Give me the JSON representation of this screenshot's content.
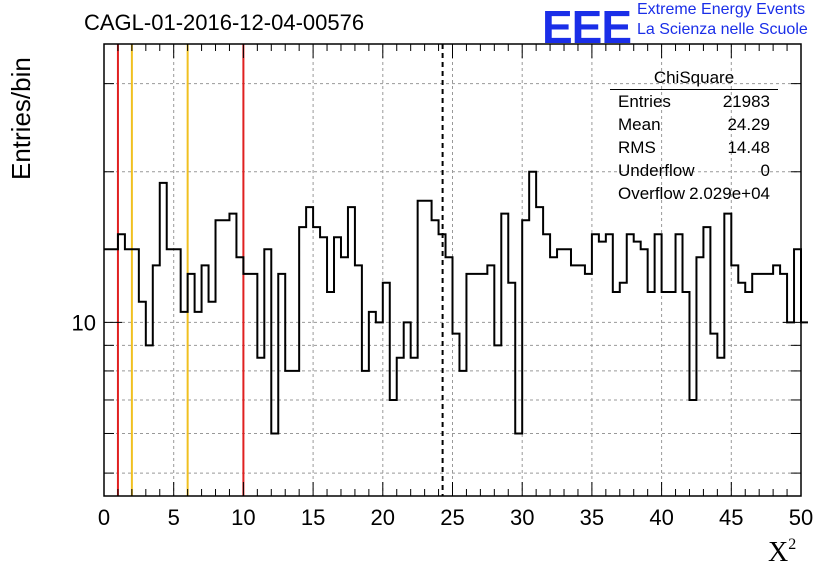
{
  "chart_data": {
    "type": "histogram",
    "title": "CAGL-01-2016-12-04-00576",
    "xlabel": "X",
    "xlabel_sup": "2",
    "ylabel": "Entries/bin",
    "xlim": [
      0,
      50
    ],
    "ylog": true,
    "ylim": [
      4.5,
      36
    ],
    "xticks": [
      0,
      5,
      10,
      15,
      20,
      25,
      30,
      35,
      40,
      45,
      50
    ],
    "xtick_labels": [
      "0",
      "5",
      "10",
      "15",
      "20",
      "25",
      "30",
      "35",
      "40",
      "45",
      "50"
    ],
    "yticks": [
      10
    ],
    "ytick_labels": [
      "10"
    ],
    "grid": true,
    "bin_width": 0.5,
    "bin_start": 0,
    "values": [
      14,
      14,
      15,
      14,
      14,
      11,
      9,
      13,
      19,
      14,
      14,
      10.5,
      12.5,
      10.5,
      13,
      11,
      16,
      16,
      16.5,
      13.5,
      12.5,
      12.5,
      8.5,
      14,
      6,
      12.5,
      8,
      8,
      15.5,
      17,
      15.5,
      14.8,
      11.5,
      14.8,
      13.5,
      17,
      13,
      8,
      10.5,
      10,
      12,
      7,
      8.5,
      10,
      8.5,
      17.5,
      17.5,
      16,
      15,
      13.5,
      9.5,
      8,
      12.5,
      12.5,
      12.5,
      13,
      9,
      16.5,
      12,
      6,
      16,
      20,
      17,
      15,
      13.5,
      14,
      14,
      13,
      13,
      12.5,
      15,
      14.5,
      15,
      11.5,
      12,
      15,
      14.5,
      14,
      11.5,
      15,
      11.5,
      11.5,
      15,
      11.5,
      7,
      13.5,
      15.5,
      9.5,
      8.5,
      16.5,
      13,
      12,
      11.5,
      12.5,
      12.5,
      12.5,
      13,
      12.5,
      10,
      14,
      10
    ],
    "markers": [
      {
        "x": 1,
        "color": "#e02020",
        "style": "solid"
      },
      {
        "x": 2,
        "color": "#f0c020",
        "style": "solid"
      },
      {
        "x": 6,
        "color": "#f0c020",
        "style": "solid"
      },
      {
        "x": 10,
        "color": "#e02020",
        "style": "solid"
      },
      {
        "x": 24.29,
        "color": "#000000",
        "style": "dashed"
      }
    ],
    "stats_box": {
      "title": "ChiSquare",
      "rows": [
        {
          "label": "Entries",
          "value": "21983"
        },
        {
          "label": "Mean",
          "value": "24.29"
        },
        {
          "label": "RMS",
          "value": "14.48"
        },
        {
          "label": "Underflow",
          "value": "0"
        },
        {
          "label": "Overflow",
          "value": "2.029e+04"
        }
      ]
    }
  },
  "logo": {
    "mark": "EEE",
    "line1": "Extreme Energy Events",
    "line2": "La Scienza nelle Scuole"
  }
}
